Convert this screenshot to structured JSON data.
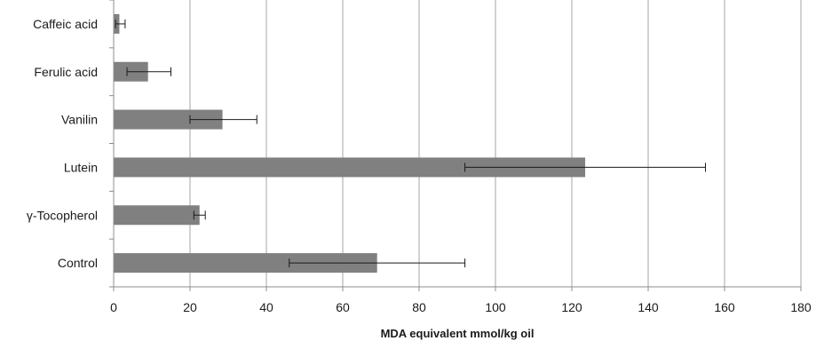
{
  "chart_data": {
    "type": "bar",
    "orientation": "horizontal",
    "categories": [
      "Caffeic acid",
      "Ferulic acid",
      "Vanilin",
      "Lutein",
      "γ-Tocopherol",
      "Control"
    ],
    "values": [
      1.5,
      9.0,
      28.5,
      123.5,
      22.5,
      69.0
    ],
    "error_low": [
      0.5,
      3.5,
      20.0,
      92.0,
      21.0,
      46.0
    ],
    "error_high": [
      3.0,
      15.0,
      37.5,
      155.0,
      24.0,
      92.0
    ],
    "title": "",
    "xlabel": "MDA equivalent mmol/kg oil",
    "ylabel": "",
    "xlim": [
      0,
      180
    ],
    "xticks": [
      "0",
      "20",
      "40",
      "60",
      "80",
      "100",
      "120",
      "140",
      "160",
      "180"
    ],
    "grid": "vertical",
    "legend": "none",
    "bar_color": "#808080",
    "grid_color": "#a6a6a6",
    "error_color": "#1a1a1a"
  }
}
